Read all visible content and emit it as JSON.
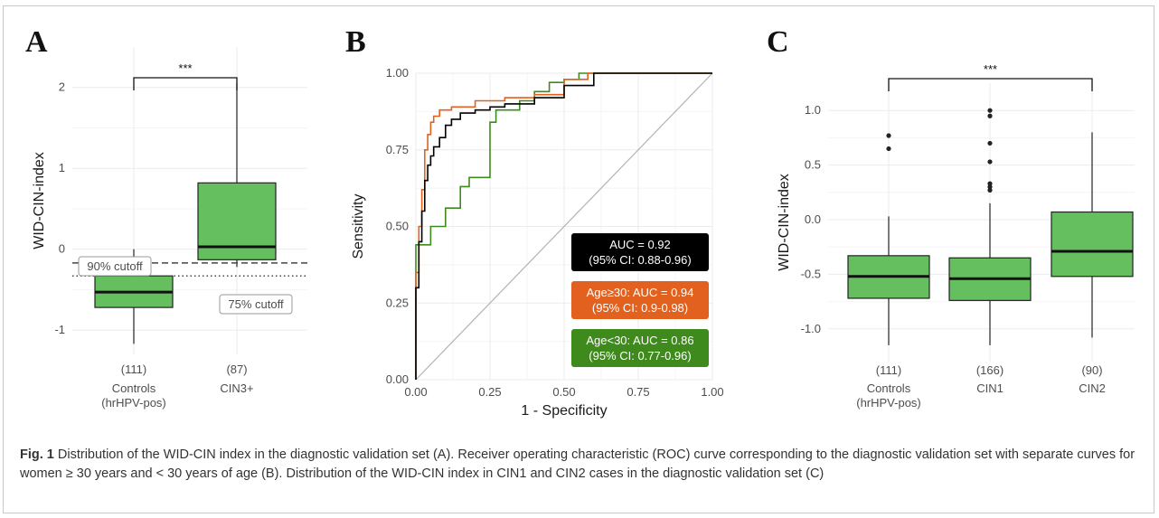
{
  "chart_data": [
    {
      "panel": "A",
      "type": "box",
      "ylabel": "WID-CIN-index",
      "ylim": [
        -1.3,
        2.5
      ],
      "yticks": [
        -1,
        0,
        1,
        2
      ],
      "categories": [
        "Controls\n(hrHPV-pos)",
        "CIN3+"
      ],
      "counts": [
        "(111)",
        "(87)"
      ],
      "boxes": [
        {
          "whisker_low": -1.17,
          "q1": -0.72,
          "median": -0.53,
          "q3": -0.33,
          "whisker_high": 0.0
        },
        {
          "whisker_low": -0.22,
          "q1": -0.13,
          "median": 0.03,
          "q3": 0.82,
          "whisker_high": 2.05
        }
      ],
      "cutoffs": [
        {
          "label": "90% cutoff",
          "value": -0.17,
          "style": "dashed"
        },
        {
          "label": "75% cutoff",
          "value": -0.33,
          "style": "dotted"
        }
      ],
      "significance": "***",
      "box_color": "#66bf5e",
      "grid": true
    },
    {
      "panel": "B",
      "type": "line",
      "xlabel": "1 - Specificity",
      "ylabel": "Sensitivity",
      "xlim": [
        0,
        1
      ],
      "ylim": [
        0,
        1
      ],
      "xticks": [
        "0.00",
        "0.25",
        "0.50",
        "0.75",
        "1.00"
      ],
      "yticks": [
        "0.00",
        "0.25",
        "0.50",
        "0.75",
        "1.00"
      ],
      "grid": true,
      "series": [
        {
          "name": "AUC = 0.92\n(95% CI: 0.88-0.96)",
          "color": "#000000",
          "x": [
            0,
            0,
            0.01,
            0.01,
            0.02,
            0.02,
            0.03,
            0.03,
            0.04,
            0.04,
            0.05,
            0.05,
            0.06,
            0.06,
            0.08,
            0.08,
            0.1,
            0.1,
            0.12,
            0.12,
            0.15,
            0.15,
            0.2,
            0.2,
            0.25,
            0.25,
            0.3,
            0.3,
            0.4,
            0.4,
            0.5,
            0.5,
            0.6,
            0.6,
            1.0
          ],
          "y": [
            0,
            0.3,
            0.3,
            0.45,
            0.45,
            0.55,
            0.55,
            0.65,
            0.65,
            0.7,
            0.7,
            0.73,
            0.73,
            0.76,
            0.76,
            0.79,
            0.79,
            0.83,
            0.83,
            0.85,
            0.85,
            0.87,
            0.87,
            0.88,
            0.88,
            0.89,
            0.89,
            0.9,
            0.9,
            0.92,
            0.92,
            0.96,
            0.96,
            1.0,
            1.0
          ]
        },
        {
          "name": "Age≥30: AUC = 0.94\n(95% CI: 0.9-0.98)",
          "color": "#e2611e",
          "x": [
            0,
            0,
            0.01,
            0.01,
            0.02,
            0.02,
            0.03,
            0.03,
            0.04,
            0.04,
            0.05,
            0.05,
            0.06,
            0.06,
            0.08,
            0.08,
            0.12,
            0.12,
            0.2,
            0.2,
            0.3,
            0.3,
            0.4,
            0.4,
            0.5,
            0.5,
            0.58,
            0.58,
            1.0
          ],
          "y": [
            0,
            0.35,
            0.35,
            0.5,
            0.5,
            0.62,
            0.62,
            0.75,
            0.75,
            0.8,
            0.8,
            0.84,
            0.84,
            0.86,
            0.86,
            0.88,
            0.88,
            0.89,
            0.89,
            0.91,
            0.91,
            0.92,
            0.92,
            0.93,
            0.93,
            0.98,
            0.98,
            1.0,
            1.0
          ]
        },
        {
          "name": "Age<30: AUC = 0.86\n(95% CI: 0.77-0.96)",
          "color": "#3f8a1d",
          "x": [
            0,
            0,
            0.05,
            0.05,
            0.1,
            0.1,
            0.15,
            0.15,
            0.18,
            0.18,
            0.25,
            0.25,
            0.27,
            0.27,
            0.35,
            0.35,
            0.4,
            0.4,
            0.45,
            0.45,
            0.5,
            0.5,
            0.55,
            0.55,
            1.0
          ],
          "y": [
            0,
            0.44,
            0.44,
            0.5,
            0.5,
            0.56,
            0.56,
            0.63,
            0.63,
            0.66,
            0.66,
            0.84,
            0.84,
            0.88,
            0.88,
            0.91,
            0.91,
            0.94,
            0.94,
            0.97,
            0.97,
            0.98,
            0.98,
            1.0,
            1.0
          ]
        }
      ],
      "reference_line": {
        "x": [
          0,
          1
        ],
        "y": [
          0,
          1
        ],
        "color": "#b3b3b3"
      },
      "legend_labels": [
        {
          "line1": "AUC = 0.92",
          "line2": "(95% CI: 0.88-0.96)",
          "fill": "#000000"
        },
        {
          "line1": "Age≥30: AUC = 0.94",
          "line2": "(95% CI: 0.9-0.98)",
          "fill": "#e2611e"
        },
        {
          "line1": "Age<30: AUC = 0.86",
          "line2": "(95% CI: 0.77-0.96)",
          "fill": "#3f8a1d"
        }
      ]
    },
    {
      "panel": "C",
      "type": "box",
      "ylabel": "WID-CIN-index",
      "ylim": [
        -1.3,
        1.25
      ],
      "yticks": [
        "1.0",
        "0.5",
        "0.0",
        "-0.5",
        "-1.0"
      ],
      "categories": [
        "Controls\n(hrHPV-pos)",
        "CIN1",
        "CIN2"
      ],
      "counts": [
        "(111)",
        "(166)",
        "(90)"
      ],
      "boxes": [
        {
          "whisker_low": -1.15,
          "q1": -0.72,
          "median": -0.52,
          "q3": -0.33,
          "whisker_high": 0.03,
          "outliers": [
            0.65,
            0.77
          ]
        },
        {
          "whisker_low": -1.15,
          "q1": -0.74,
          "median": -0.54,
          "q3": -0.35,
          "whisker_high": 0.15,
          "outliers": [
            0.27,
            0.3,
            0.33,
            0.53,
            0.7,
            0.95,
            1.0
          ]
        },
        {
          "whisker_low": -1.08,
          "q1": -0.52,
          "median": -0.29,
          "q3": 0.07,
          "whisker_high": 0.8
        }
      ],
      "significance": "***",
      "box_color": "#66bf5e",
      "grid": true
    }
  ],
  "panel_letters": [
    "A",
    "B",
    "C"
  ],
  "caption": {
    "label": "Fig. 1",
    "text": "  Distribution of the WID-CIN index in the diagnostic validation set (A). Receiver operating characteristic (ROC) curve corresponding to the diagnostic validation set with separate curves for women ≥ 30 years and < 30 years of age (B). Distribution of the WID-CIN index in CIN1 and CIN2 cases in the diagnostic validation set (C)"
  }
}
